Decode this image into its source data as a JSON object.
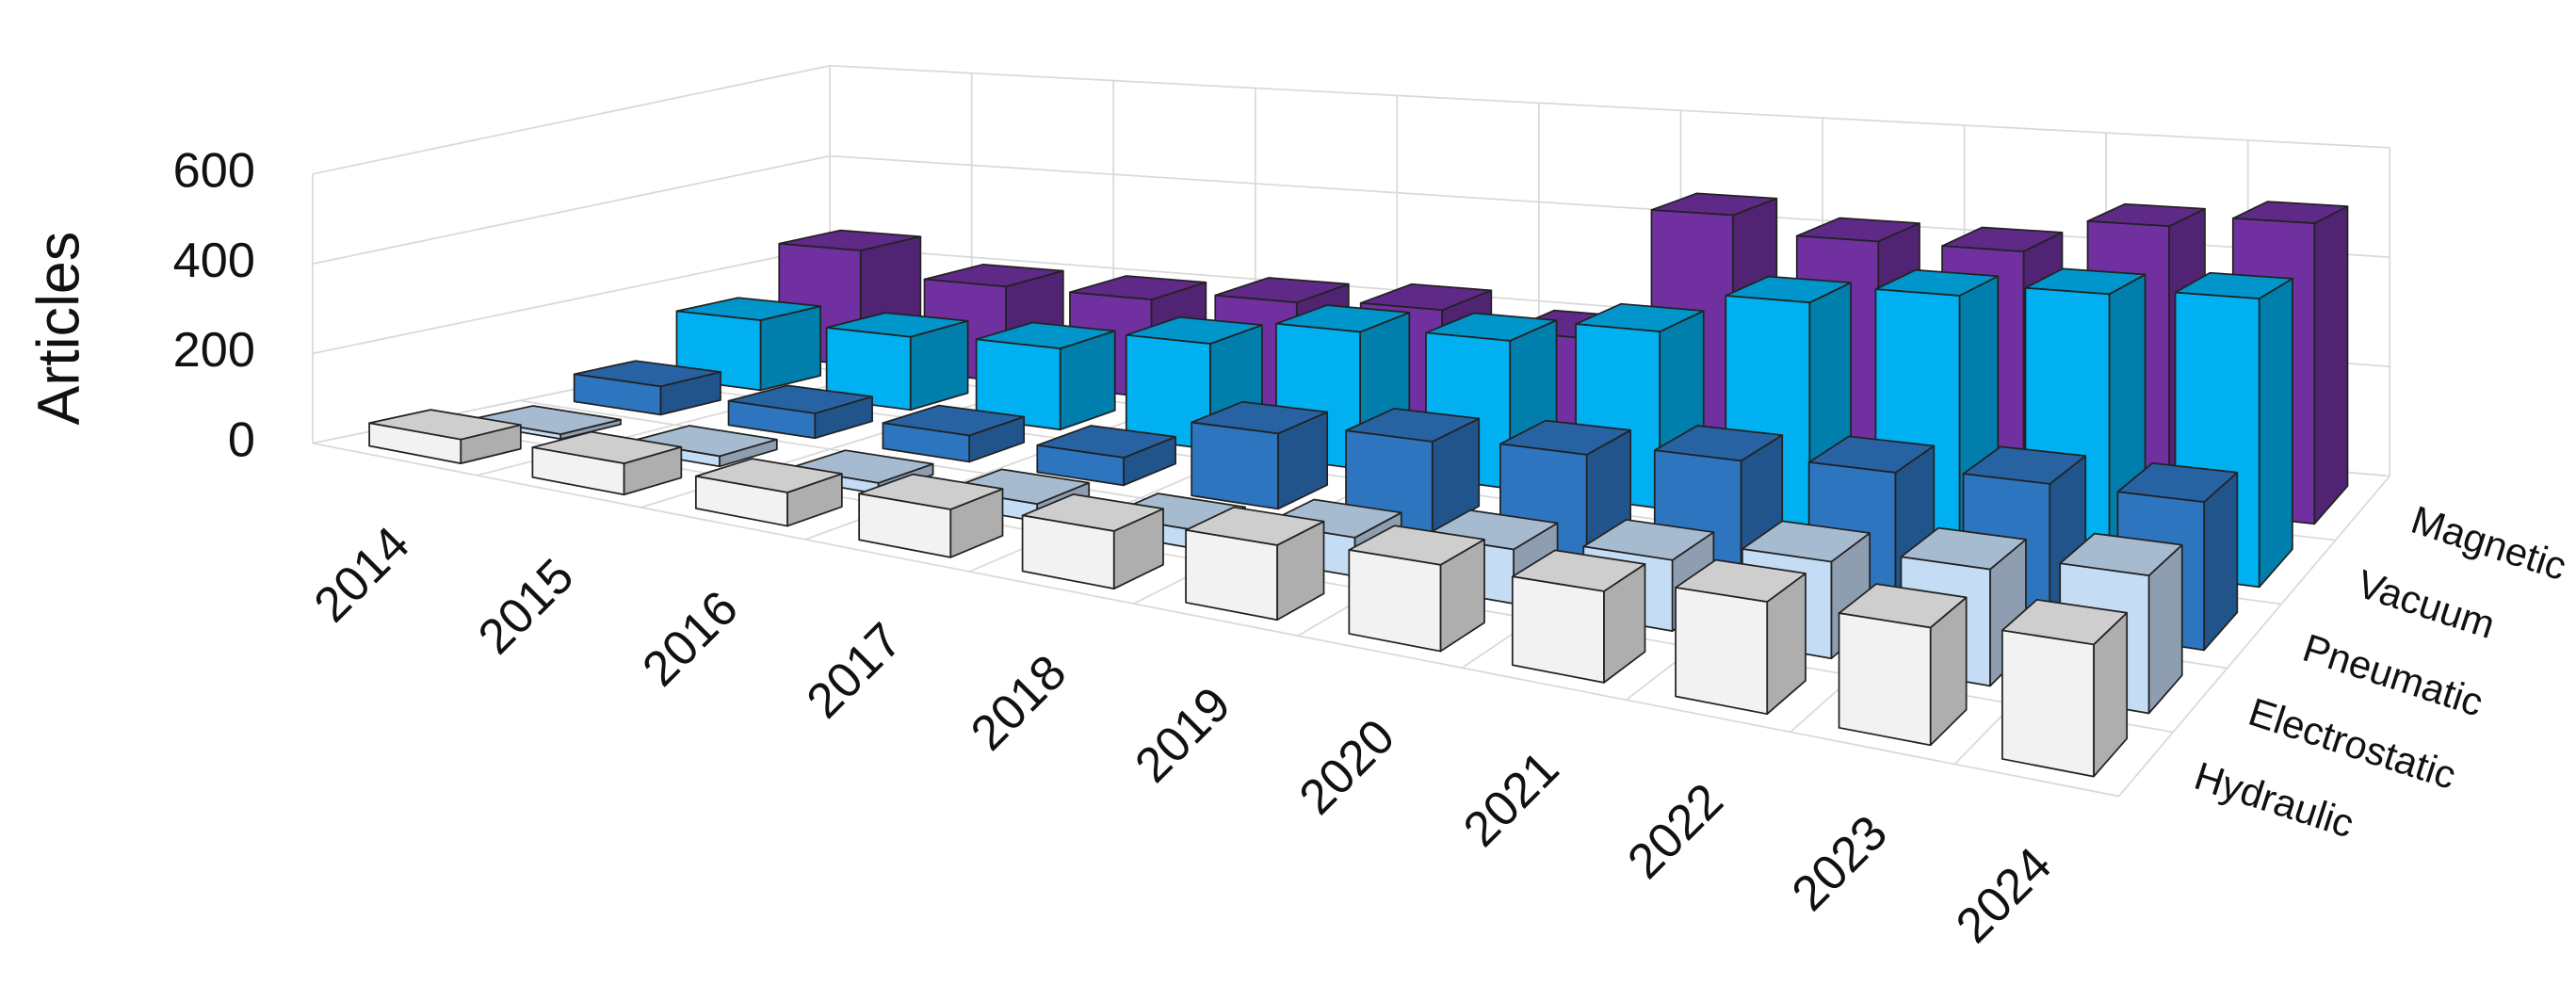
{
  "chart_data": {
    "type": "bar3d",
    "y_label": "Articles",
    "categories": [
      "2014",
      "2015",
      "2016",
      "2017",
      "2018",
      "2019",
      "2020",
      "2021",
      "2022",
      "2023",
      "2024"
    ],
    "series": [
      {
        "name": "Hydraulic",
        "color": "#f2f2f2",
        "values": [
          50,
          60,
          60,
          80,
          90,
          110,
          120,
          120,
          140,
          140,
          150
        ]
      },
      {
        "name": "Electrostatic",
        "color": "#c5dcf5",
        "values": [
          10,
          20,
          20,
          30,
          30,
          60,
          80,
          100,
          130,
          150,
          170
        ]
      },
      {
        "name": "Pneumatic",
        "color": "#2e75c0",
        "values": [
          60,
          50,
          50,
          50,
          130,
          150,
          160,
          180,
          190,
          200,
          200
        ]
      },
      {
        "name": "Vacuum",
        "color": "#00b0f0",
        "values": [
          150,
          150,
          160,
          200,
          250,
          260,
          300,
          370,
          400,
          420,
          430
        ]
      },
      {
        "name": "Magnetic",
        "color": "#7030a0",
        "values": [
          250,
          200,
          200,
          220,
          230,
          200,
          450,
          420,
          420,
          480,
          500
        ]
      }
    ],
    "ylim": [
      0,
      600
    ],
    "yticks": [
      0,
      200,
      400,
      600
    ],
    "grid": true
  }
}
